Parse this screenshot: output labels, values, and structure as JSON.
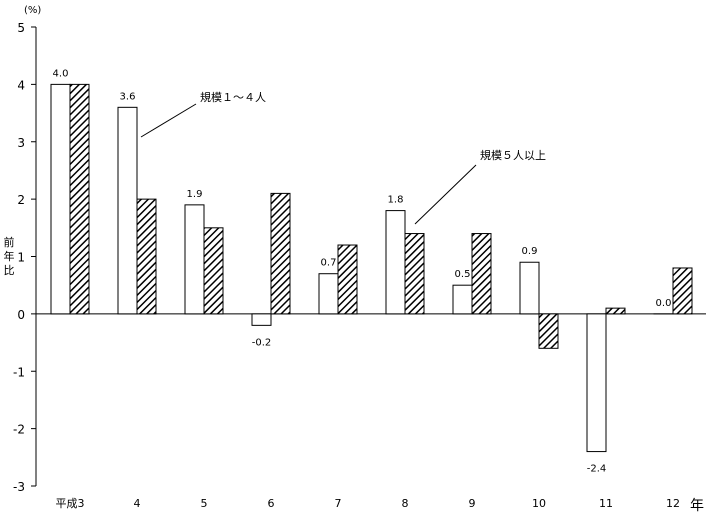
{
  "chart_data": {
    "type": "bar",
    "unit_label": "(%)",
    "ylabel": "前年比",
    "xlabel": "年",
    "ylim": [
      -3,
      5
    ],
    "yticks": [
      5,
      4,
      3,
      2,
      1,
      0,
      -1,
      -2,
      -3
    ],
    "categories": [
      "平成3",
      "4",
      "5",
      "6",
      "7",
      "8",
      "9",
      "10",
      "11",
      "12"
    ],
    "series": [
      {
        "name": "規模１～４人",
        "style": "white",
        "values": [
          4.0,
          3.6,
          1.9,
          -0.2,
          0.7,
          1.8,
          0.5,
          0.9,
          -2.4,
          0.0
        ]
      },
      {
        "name": "規模５人以上",
        "style": "hatched",
        "values": [
          4.0,
          2.0,
          1.5,
          2.1,
          1.2,
          1.4,
          1.4,
          -0.6,
          0.1,
          0.8
        ]
      }
    ],
    "data_labels": [
      "4.0",
      "3.6",
      "1.9",
      "-0.2",
      "0.7",
      "1.8",
      "0.5",
      "0.9",
      "-2.4",
      "0.0"
    ],
    "legend": "inline callouts",
    "grid": false,
    "colors": {
      "bar_fill": "#ffffff",
      "bar_stroke": "#000000",
      "hatch": "#000000"
    }
  }
}
